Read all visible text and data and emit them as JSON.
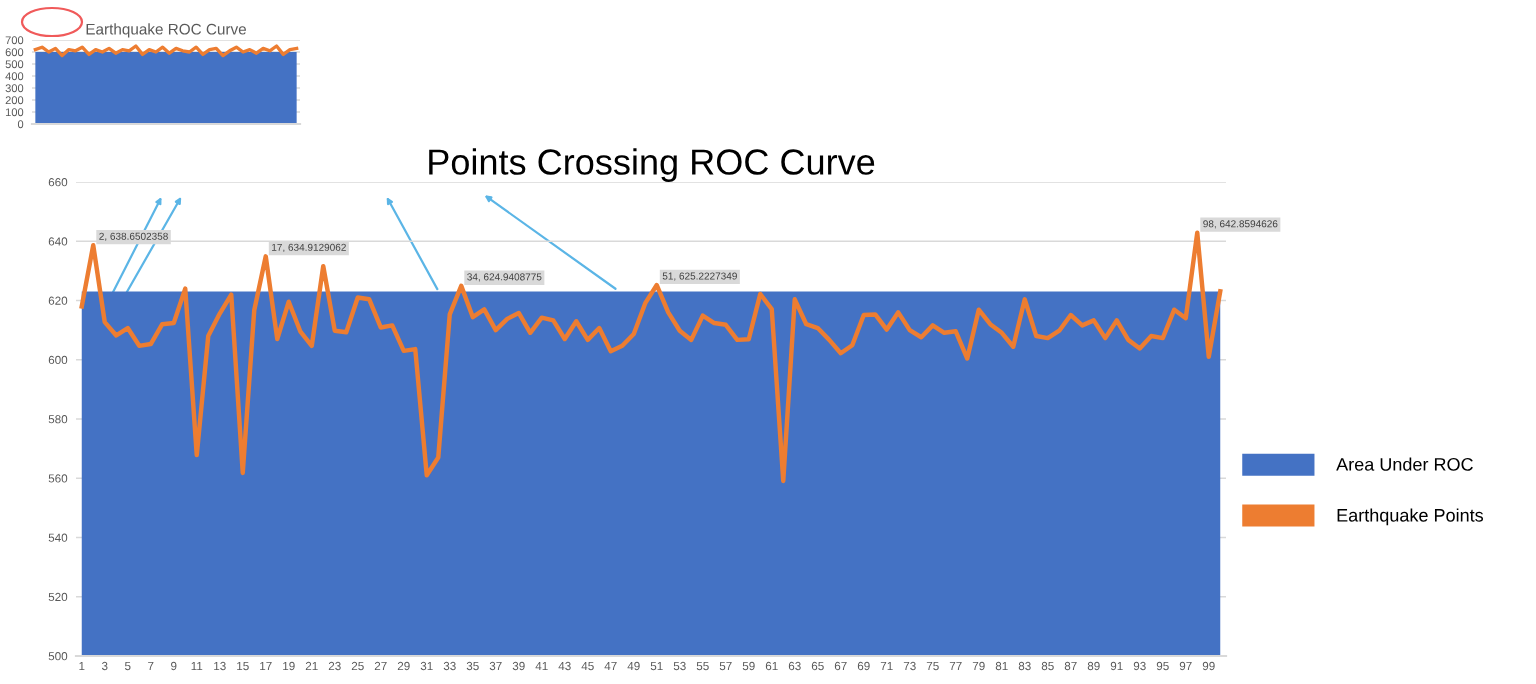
{
  "chart_data": [
    {
      "type": "area",
      "title": "Earthquake ROC Curve",
      "categories": [
        null,
        null,
        null,
        null,
        null,
        null,
        null,
        null,
        null,
        null,
        null,
        null,
        null,
        null,
        null,
        null,
        null,
        null,
        null,
        null,
        null,
        null,
        null,
        null,
        null,
        null,
        null,
        null,
        null,
        null,
        null,
        null,
        null,
        null,
        null,
        null,
        null,
        null,
        null,
        null
      ],
      "ylim": [
        0,
        700
      ],
      "yticks": [
        0,
        100,
        200,
        300,
        400,
        500,
        600,
        700
      ],
      "grid": "y",
      "tick_labels": "y",
      "series": [
        {
          "color": "#4472c4",
          "values": [
            600,
            600,
            600,
            600,
            600,
            600,
            600,
            600,
            600,
            600,
            600,
            600,
            600,
            600,
            600,
            600,
            600,
            600,
            600,
            600,
            600,
            600,
            600,
            600,
            600,
            600,
            600,
            600,
            600,
            600,
            600,
            600,
            600,
            600,
            600,
            600,
            600,
            600,
            600,
            600
          ]
        },
        {
          "type": "line",
          "color": "#ed7d31",
          "values": [
            620,
            640,
            600,
            630,
            570,
            620,
            610,
            640,
            580,
            620,
            600,
            630,
            590,
            620,
            610,
            650,
            580,
            620,
            600,
            640,
            590,
            630,
            610,
            600,
            640,
            580,
            620,
            630,
            570,
            610,
            640,
            600,
            620,
            590,
            630,
            610,
            650,
            580,
            620,
            630
          ]
        }
      ]
    },
    {
      "type": "area",
      "title": "Points Crossing ROC Curve",
      "categories": [
        "1",
        null,
        "3",
        null,
        "5",
        null,
        "7",
        null,
        "9",
        null,
        "11",
        null,
        "13",
        null,
        "15",
        null,
        "17",
        null,
        "19",
        null,
        "21",
        null,
        "23",
        null,
        "25",
        null,
        "27",
        null,
        "29",
        null,
        "31",
        null,
        "33",
        null,
        "35",
        null,
        "37",
        null,
        "39",
        null,
        "41",
        null,
        "43",
        null,
        "45",
        null,
        "47",
        null,
        "49",
        null,
        "51",
        null,
        "53",
        null,
        "55",
        null,
        "57",
        null,
        "59",
        null,
        "61",
        null,
        "63",
        null,
        "65",
        null,
        "67",
        null,
        "69",
        null,
        "71",
        null,
        "73",
        null,
        "75",
        null,
        "77",
        null,
        "79",
        null,
        "81",
        null,
        "83",
        null,
        "85",
        null,
        "87",
        null,
        "89",
        null,
        "91",
        null,
        "93",
        null,
        "95",
        null,
        "97",
        null,
        "99",
        null
      ],
      "ylim": [
        500,
        660
      ],
      "yticks": [
        500,
        520,
        540,
        560,
        580,
        600,
        620,
        640,
        660
      ],
      "grid": "y",
      "legend": "right",
      "series": [
        {
          "name": "Area Under ROC",
          "color": "#4472c4",
          "values": [
            623,
            623,
            623,
            623,
            623,
            623,
            623,
            623,
            623,
            623,
            623,
            623,
            623,
            623,
            623,
            623,
            623,
            623,
            623,
            623,
            623,
            623,
            623,
            623,
            623,
            623,
            623,
            623,
            623,
            623,
            623,
            623,
            623,
            623,
            623,
            623,
            623,
            623,
            623,
            623,
            623,
            623,
            623,
            623,
            623,
            623,
            623,
            623,
            623,
            623,
            623,
            623,
            623,
            623,
            623,
            623,
            623,
            623,
            623,
            623,
            623,
            623,
            623,
            623,
            623,
            623,
            623,
            623,
            623,
            623,
            623,
            623,
            623,
            623,
            623,
            623,
            623,
            623,
            623,
            623,
            623,
            623,
            623,
            623,
            623,
            623,
            623,
            623,
            623,
            623,
            623,
            623,
            623,
            623,
            623,
            623,
            623,
            623,
            623,
            623
          ]
        },
        {
          "type": "line",
          "name": "Earthquake Points",
          "color": "#ed7d31",
          "values": [
            618,
            638.6502358,
            612.7,
            608.2,
            610.7,
            604.7,
            605.3,
            612,
            612.4,
            624,
            567.8,
            608,
            615.6,
            622,
            561.8,
            616.7,
            634.9129062,
            607,
            619.6,
            609.6,
            604.7,
            631.6,
            609.8,
            609.3,
            621,
            620.4,
            610.9,
            611.6,
            603,
            603.6,
            561,
            567,
            615.3,
            624.9408775,
            614.4,
            617,
            610,
            613.8,
            615.8,
            609.1,
            614.2,
            613.3,
            607,
            613,
            606.7,
            610.7,
            602.9,
            604.7,
            608.7,
            619.1,
            625.2227349,
            616,
            609.8,
            606.7,
            614.9,
            612.4,
            611.8,
            606.7,
            606.9,
            622.2,
            617.1,
            559.1,
            620.4,
            612,
            610.7,
            606.7,
            602.2,
            604.9,
            615.1,
            615.3,
            610.2,
            616,
            610,
            607.6,
            611.6,
            609.1,
            609.6,
            600.4,
            616.9,
            612,
            609.1,
            604.4,
            620.4,
            608,
            607.3,
            609.8,
            615.1,
            611.6,
            613.3,
            607.3,
            613.3,
            606.7,
            603.8,
            608,
            607.3,
            616.9,
            614,
            642.8594626,
            601,
            623.1
          ],
          "value_labels": [
            null,
            "2, 638.6502358",
            null,
            null,
            null,
            null,
            null,
            null,
            null,
            null,
            null,
            null,
            null,
            null,
            null,
            null,
            "17, 634.9129062",
            null,
            null,
            null,
            null,
            null,
            null,
            null,
            null,
            null,
            null,
            null,
            null,
            null,
            null,
            null,
            null,
            "34, 624.9408775",
            null,
            null,
            null,
            null,
            null,
            null,
            null,
            null,
            null,
            null,
            null,
            null,
            null,
            null,
            null,
            null,
            "51, 625.2227349",
            null,
            null,
            null,
            null,
            null,
            null,
            null,
            null,
            null,
            null,
            null,
            null,
            null,
            null,
            null,
            null,
            null,
            null,
            null,
            null,
            null,
            null,
            null,
            null,
            null,
            null,
            null,
            null,
            null,
            null,
            null,
            null,
            null,
            null,
            null,
            null,
            null,
            null,
            null,
            null,
            null,
            null,
            null,
            null,
            null,
            null,
            "98, 642.8594626",
            null,
            null
          ]
        }
      ]
    }
  ]
}
